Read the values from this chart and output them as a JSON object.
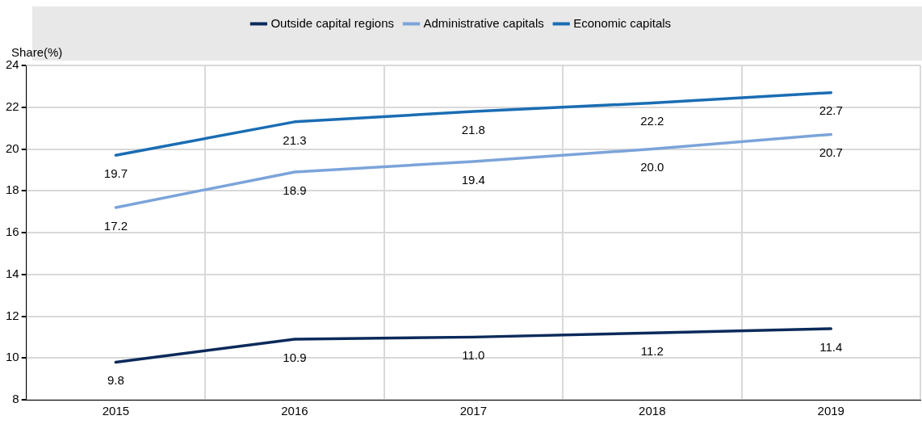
{
  "chart_data": {
    "type": "line",
    "ylabel": "Share(%)",
    "categories": [
      "2015",
      "2016",
      "2017",
      "2018",
      "2019"
    ],
    "series": [
      {
        "name": "Outside capital regions",
        "color": "#0b2a5b",
        "values": [
          9.8,
          10.9,
          11.0,
          11.2,
          11.4
        ],
        "value_labels": [
          "9.8",
          "10.9",
          "11.0",
          "11.2",
          "11.4"
        ]
      },
      {
        "name": "Administrative capitals",
        "color": "#7ba4d9",
        "values": [
          17.2,
          18.9,
          19.4,
          20.0,
          20.7
        ],
        "value_labels": [
          "17.2",
          "18.9",
          "19.4",
          "20.0",
          "20.7"
        ]
      },
      {
        "name": "Economic capitals",
        "color": "#1a6db3",
        "values": [
          19.7,
          21.3,
          21.8,
          22.2,
          22.7
        ],
        "value_labels": [
          "19.7",
          "21.3",
          "21.8",
          "22.2",
          "22.7"
        ]
      }
    ],
    "ylim": [
      8,
      24
    ],
    "yticks": [
      8,
      10,
      12,
      14,
      16,
      18,
      20,
      22,
      24
    ],
    "grid": true,
    "legend": "top",
    "marker": "none",
    "line_style": "solid"
  }
}
